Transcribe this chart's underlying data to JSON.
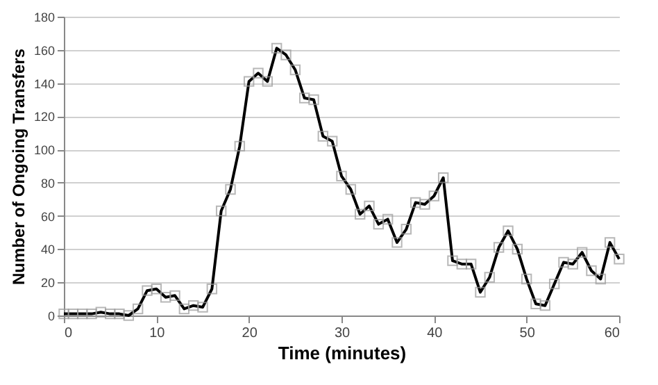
{
  "chart_data": {
    "type": "line",
    "xlabel": "Time (minutes)",
    "ylabel": "Number of Ongoing Transfers",
    "x": [
      0,
      1,
      2,
      3,
      4,
      5,
      6,
      7,
      8,
      9,
      10,
      11,
      12,
      13,
      14,
      15,
      16,
      17,
      18,
      19,
      20,
      21,
      22,
      23,
      24,
      25,
      26,
      27,
      28,
      29,
      30,
      31,
      32,
      33,
      34,
      35,
      36,
      37,
      38,
      39,
      40,
      41,
      42,
      43,
      44,
      45,
      46,
      47,
      48,
      49,
      50,
      51,
      52,
      53,
      54,
      55,
      56,
      57,
      58,
      59,
      60
    ],
    "series": [
      {
        "color": "#000000",
        "values": [
          1,
          1,
          1,
          1,
          2,
          1,
          1,
          0,
          4,
          15,
          16,
          11,
          12,
          4,
          6,
          5,
          16,
          63,
          76,
          102,
          141,
          146,
          141,
          161,
          157,
          148,
          131,
          130,
          108,
          105,
          84,
          76,
          61,
          66,
          55,
          58,
          44,
          52,
          68,
          67,
          72,
          83,
          33,
          31,
          31,
          14,
          23,
          41,
          51,
          40,
          22,
          7,
          6,
          19,
          32,
          31,
          38,
          27,
          22,
          44,
          34
        ]
      }
    ],
    "xlim": [
      0,
      60
    ],
    "xticks": [
      0,
      10,
      20,
      30,
      40,
      50,
      60
    ],
    "ylim": [
      0,
      180
    ],
    "yticks": [
      0,
      20,
      40,
      60,
      80,
      100,
      120,
      140,
      160,
      180
    ],
    "grid": "y",
    "marker": "square",
    "line_style": "solid",
    "legend": false
  }
}
